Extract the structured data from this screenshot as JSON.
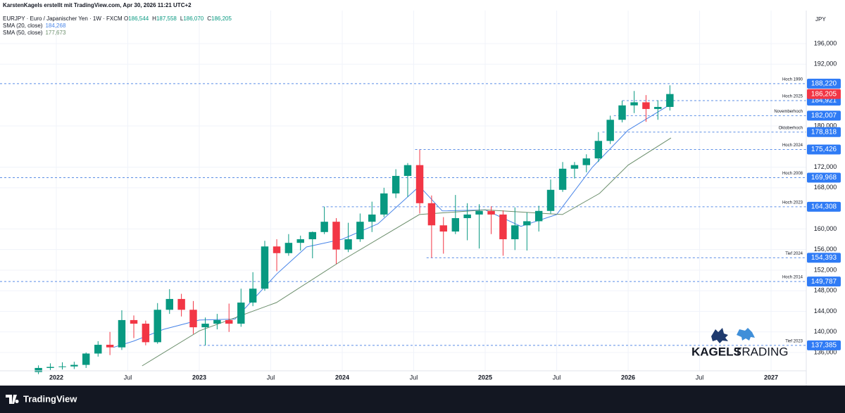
{
  "header": {
    "attribution": "KarstenKagels erstellt mit TradingView.com, Apr 30, 2026 11:21 UTC+2",
    "symbol": "EURJPY · Euro / Japanischer Yen · 1W · FXCM",
    "ohlc": [
      {
        "key": "O",
        "value": "186,544"
      },
      {
        "key": "H",
        "value": "187,558"
      },
      {
        "key": "L",
        "value": "186,070"
      },
      {
        "key": "C",
        "value": "186,205"
      }
    ]
  },
  "chart_data": {
    "type": "candlestick",
    "currency": "JPY",
    "up_color": "#089981",
    "down_color": "#f23645",
    "x": [
      2021.875,
      2021.958,
      2022.042,
      2022.125,
      2022.208,
      2022.292,
      2022.375,
      2022.458,
      2022.542,
      2022.625,
      2022.708,
      2022.792,
      2022.875,
      2022.958,
      2023.042,
      2023.125,
      2023.208,
      2023.292,
      2023.375,
      2023.458,
      2023.542,
      2023.625,
      2023.708,
      2023.792,
      2023.875,
      2023.958,
      2024.042,
      2024.125,
      2024.208,
      2024.292,
      2024.375,
      2024.458,
      2024.542,
      2024.625,
      2024.708,
      2024.792,
      2024.875,
      2024.958,
      2025.042,
      2025.125,
      2025.208,
      2025.292,
      2025.375,
      2025.458,
      2025.542,
      2025.625,
      2025.708,
      2025.792,
      2025.875,
      2025.958,
      2026.042,
      2026.125,
      2026.208,
      2026.292
    ],
    "open": [
      132200,
      133000,
      133200,
      133300,
      133600,
      135800,
      137500,
      137000,
      142300,
      141600,
      138000,
      144300,
      146400,
      144300,
      140900,
      141600,
      142300,
      141600,
      145700,
      148400,
      156600,
      155300,
      157300,
      158000,
      159400,
      161400,
      156000,
      158000,
      161400,
      162800,
      166900,
      170300,
      172400,
      165000,
      160700,
      159500,
      162100,
      162800,
      163500,
      162800,
      158000,
      160700,
      161500,
      163500,
      167600,
      171700,
      172400,
      173700,
      177100,
      181200,
      184000,
      184600,
      183300,
      183700
    ],
    "high": [
      133500,
      133900,
      134100,
      134200,
      136000,
      138200,
      140000,
      144200,
      143200,
      142200,
      145600,
      148300,
      147400,
      146000,
      142800,
      143500,
      145500,
      148400,
      151600,
      157700,
      158000,
      159000,
      158700,
      159500,
      164308,
      162100,
      161200,
      163000,
      165300,
      168000,
      171600,
      172800,
      175426,
      166500,
      162300,
      166600,
      165000,
      164800,
      164400,
      163600,
      164200,
      163200,
      164500,
      169600,
      173000,
      173000,
      174500,
      178818,
      182007,
      184921,
      186800,
      186000,
      185000,
      187900
    ],
    "low": [
      131800,
      132600,
      132700,
      132800,
      133000,
      135200,
      135500,
      136500,
      138800,
      137400,
      137700,
      143500,
      143000,
      139600,
      137385,
      140500,
      140000,
      141000,
      145000,
      148000,
      151800,
      154800,
      155800,
      154300,
      159000,
      153200,
      155500,
      157500,
      159400,
      162300,
      166000,
      166200,
      163000,
      154393,
      155200,
      159000,
      157800,
      156200,
      159000,
      154800,
      155900,
      155800,
      159500,
      163000,
      167200,
      169800,
      171000,
      173000,
      176500,
      180700,
      182500,
      180800,
      181200,
      183000
    ],
    "close": [
      133000,
      133200,
      133300,
      133600,
      135800,
      137500,
      137000,
      142300,
      141600,
      138000,
      144300,
      146400,
      144300,
      140900,
      141600,
      142300,
      141600,
      145700,
      148400,
      156600,
      155300,
      157300,
      158000,
      159400,
      161400,
      156000,
      158000,
      161400,
      162800,
      166900,
      170300,
      172400,
      165000,
      160700,
      159500,
      162100,
      162800,
      163500,
      162800,
      158000,
      160700,
      161500,
      163500,
      167600,
      171700,
      172400,
      173700,
      177100,
      181200,
      184000,
      184600,
      183300,
      183700,
      186205
    ],
    "series": [
      {
        "name": "SMA (20, close)",
        "color": "#4a86e8",
        "last_label": "184,268",
        "x": [
          2022.4,
          2022.54,
          2022.75,
          2023.0,
          2023.25,
          2023.54,
          2023.75,
          2024.0,
          2024.25,
          2024.54,
          2024.7,
          2025.0,
          2025.25,
          2025.5,
          2025.75,
          2026.0,
          2026.3
        ],
        "values": [
          137000,
          138200,
          140500,
          142300,
          142500,
          151200,
          156500,
          158000,
          161000,
          168300,
          163500,
          163700,
          160500,
          162800,
          172000,
          179200,
          184268
        ]
      },
      {
        "name": "SMA (50, close)",
        "color": "#6b8e6b",
        "last_label": "177,673",
        "x": [
          2022.6,
          2023.0,
          2023.54,
          2024.0,
          2024.54,
          2025.0,
          2025.54,
          2025.8,
          2026.0,
          2026.3
        ],
        "values": [
          133400,
          140200,
          145700,
          153900,
          162800,
          163700,
          162800,
          166900,
          172400,
          177673
        ]
      }
    ],
    "levels": [
      {
        "name": "Hoch 1990",
        "value": 188220,
        "value_label": "188,220",
        "x_start": 2021.606
      },
      {
        "name": "Hoch 2025",
        "value": 184921,
        "value_label": "184,921",
        "x_start": 2025.96
      },
      {
        "name": "Novemberhoch",
        "value": 182007,
        "value_label": "182,007",
        "x_start": 2025.9
      },
      {
        "name": "Oktoberhoch",
        "value": 178818,
        "value_label": "178,818",
        "x_start": 2025.82
      },
      {
        "name": "Hoch 2024",
        "value": 175426,
        "value_label": "175,426",
        "x_start": 2024.51
      },
      {
        "name": "Hoch 2008",
        "value": 169968,
        "value_label": "169,968",
        "x_start": 2021.606
      },
      {
        "name": "Hoch 2023",
        "value": 164308,
        "value_label": "164,308",
        "x_start": 2023.86
      },
      {
        "name": "Tief 2024",
        "value": 154393,
        "value_label": "154,393",
        "x_start": 2024.59
      },
      {
        "name": "Hoch 2014",
        "value": 149787,
        "value_label": "149,787",
        "x_start": 2021.606
      },
      {
        "name": "Tief 2023",
        "value": 137385,
        "value_label": "137,385",
        "x_start": 2023.0
      }
    ],
    "last_price": {
      "value": 186205,
      "label": "186,205",
      "color": "#f23645"
    },
    "xlim": [
      2021.606,
      2027.246
    ],
    "ylim": [
      132450,
      202420
    ],
    "xticks": [
      {
        "value": 2022,
        "label": "2022"
      },
      {
        "value": 2022.5,
        "label": "Jul"
      },
      {
        "value": 2023,
        "label": "2023"
      },
      {
        "value": 2023.5,
        "label": "Jul"
      },
      {
        "value": 2024,
        "label": "2024"
      },
      {
        "value": 2024.5,
        "label": "Jul"
      },
      {
        "value": 2025,
        "label": "2025"
      },
      {
        "value": 2025.5,
        "label": "Jul"
      },
      {
        "value": 2026,
        "label": "2026"
      },
      {
        "value": 2026.5,
        "label": "Jul"
      },
      {
        "value": 2027,
        "label": "2027"
      }
    ],
    "yticks": [
      {
        "value": 136000,
        "label": "136,000"
      },
      {
        "value": 140000,
        "label": "140,000"
      },
      {
        "value": 144000,
        "label": "144,000"
      },
      {
        "value": 148000,
        "label": "148,000"
      },
      {
        "value": 152000,
        "label": "152,000"
      },
      {
        "value": 156000,
        "label": "156,000"
      },
      {
        "value": 160000,
        "label": "160,000"
      },
      {
        "value": 168000,
        "label": "168,000"
      },
      {
        "value": 172000,
        "label": "172,000"
      },
      {
        "value": 180000,
        "label": "180,000"
      },
      {
        "value": 192000,
        "label": "192,000"
      },
      {
        "value": 196000,
        "label": "196,000"
      }
    ],
    "grid": true
  },
  "logo": {
    "left": "KAGELS",
    "right": "TRADING"
  },
  "footer": {
    "brand": "TradingView"
  }
}
